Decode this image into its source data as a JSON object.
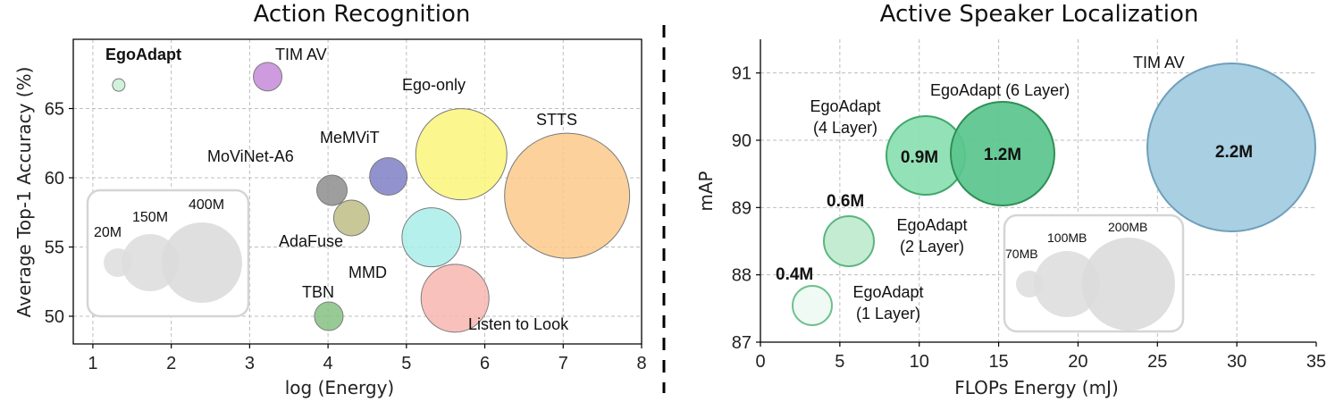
{
  "chart_data": [
    {
      "type": "scatter",
      "title": "Action Recognition",
      "xlabel": "log (Energy)",
      "ylabel": "Average Top-1 Accuracy (%)",
      "xlim": [
        0.75,
        8
      ],
      "ylim": [
        48,
        70
      ],
      "xticks": [
        1,
        2,
        3,
        4,
        5,
        6,
        7,
        8
      ],
      "yticks": [
        50,
        55,
        60,
        65
      ],
      "grid": true,
      "points": [
        {
          "label": "EgoAdapt",
          "x": 1.33,
          "y": 66.7,
          "size_px": 7,
          "color": "#c9efd5",
          "bold": true
        },
        {
          "label": "TIM AV",
          "x": 3.23,
          "y": 67.3,
          "size_px": 16,
          "color": "#c58ad8"
        },
        {
          "label": "Ego-only",
          "x": 5.7,
          "y": 61.7,
          "size_px": 51,
          "color": "#fbf57a"
        },
        {
          "label": "STTS",
          "x": 7.05,
          "y": 58.7,
          "size_px": 70,
          "color": "#fbc98a"
        },
        {
          "label": "MeMViT",
          "x": 4.77,
          "y": 60.1,
          "size_px": 21,
          "color": "#7f7fc6"
        },
        {
          "label": "MoViNet-A6",
          "x": 4.05,
          "y": 59.1,
          "size_px": 17,
          "color": "#8d8d8d"
        },
        {
          "label": "AdaFuse",
          "x": 4.3,
          "y": 57.1,
          "size_px": 20,
          "color": "#bdbd86"
        },
        {
          "label": "",
          "x": 5.32,
          "y": 55.7,
          "size_px": 33,
          "color": "#a9ede9"
        },
        {
          "label": "MMD",
          "x": 5.62,
          "y": 51.3,
          "size_px": 38,
          "color": "#f8b6b0"
        },
        {
          "label": "TBN",
          "x": 4.01,
          "y": 50.0,
          "size_px": 16,
          "color": "#86c182"
        },
        {
          "label": "Listen to Look",
          "x": null,
          "y": null,
          "size_px": 0,
          "color": ""
        }
      ],
      "legend": {
        "entries": [
          "20M",
          "150M",
          "400M"
        ],
        "placement": "lower-left"
      }
    },
    {
      "type": "scatter",
      "title": "Active Speaker Localization",
      "xlabel": "FLOPs Energy (mJ)",
      "ylabel": "mAP",
      "xlim": [
        0,
        35
      ],
      "ylim": [
        87,
        91.5
      ],
      "xticks": [
        0,
        5,
        10,
        15,
        20,
        25,
        30,
        35
      ],
      "yticks": [
        87,
        88,
        89,
        90,
        91
      ],
      "grid": true,
      "points": [
        {
          "label": "EgoAdapt\n(1 Layer)",
          "param": "0.4M",
          "x": 3.3,
          "y": 87.53,
          "color": "#eefaf3",
          "edge": "#6fc08d"
        },
        {
          "label": "EgoAdapt\n(2 Layer)",
          "param": "0.6M",
          "x": 5.6,
          "y": 88.5,
          "color": "#c3ecd3",
          "edge": "#5cb57d"
        },
        {
          "label": "EgoAdapt\n(4 Layer)",
          "param": "0.9M",
          "x": 10.4,
          "y": 89.75,
          "color": "#8ddfb3",
          "edge": "#3fa86a"
        },
        {
          "label": "EgoAdapt (6 Layer)",
          "param": "1.2M",
          "x": 15.1,
          "y": 89.8,
          "color": "#5ac58d",
          "edge": "#2f8f55"
        },
        {
          "label": "TIM AV",
          "param": "2.2M",
          "x": 29.5,
          "y": 89.9,
          "color": "#a8cfe2",
          "edge": "#6f9fba"
        }
      ],
      "legend": {
        "entries": [
          "70MB",
          "100MB",
          "200MB"
        ],
        "placement": "lower-right"
      }
    }
  ],
  "separator": "dashed-vertical-line"
}
